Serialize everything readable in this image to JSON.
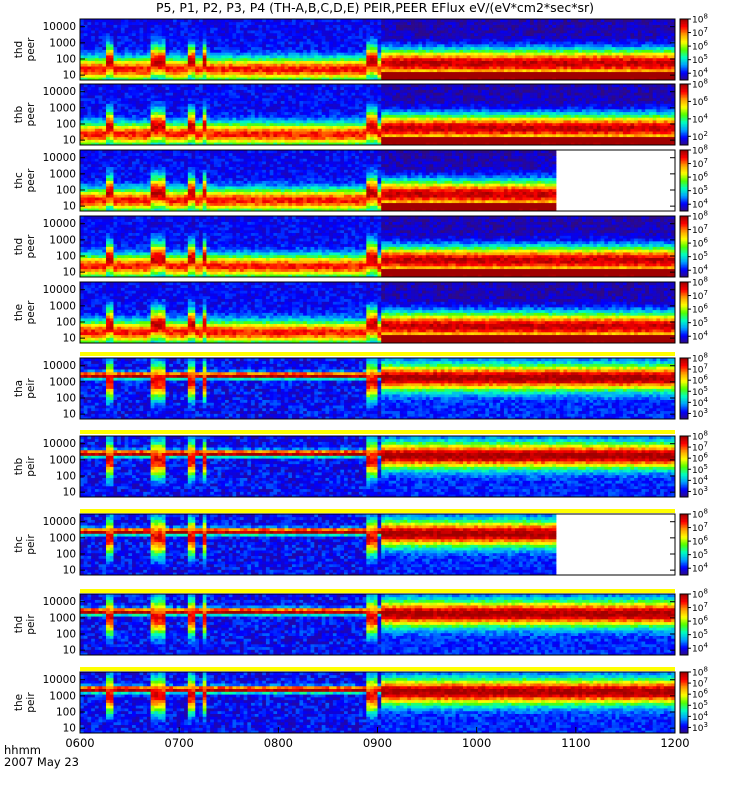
{
  "chart_data": {
    "type": "heatmap",
    "title": "P5, P1, P2, P3, P4 (TH-A,B,C,D,E) PEIR,PEER EFlux eV/(eV*cm2*sec*sr)",
    "time_axis": {
      "label": "hhmm",
      "date": "2007 May 23",
      "range": [
        "0600",
        "1200"
      ],
      "ticks": [
        "0600",
        "0700",
        "0800",
        "0900",
        "1000",
        "1100",
        "1200"
      ]
    },
    "energy_axis": {
      "unit": "eV",
      "scale": "log",
      "range": [
        5,
        30000
      ],
      "ticks": [
        "10",
        "100",
        "1000",
        "10000"
      ]
    },
    "panels": [
      {
        "label": "thd peer",
        "zmin_exp": 3.5,
        "zmax_exp": 8,
        "cbar_ticks": [
          "10^4",
          "10^5",
          "10^6",
          "10^7",
          "10^8"
        ],
        "data_end": "1200",
        "species": "electron"
      },
      {
        "label": "thb peer",
        "zmin_exp": 1,
        "zmax_exp": 8,
        "cbar_ticks": [
          "10^2",
          "10^4",
          "10^6",
          "10^8"
        ],
        "data_end": "1200",
        "species": "electron"
      },
      {
        "label": "thc peer",
        "zmin_exp": 3.5,
        "zmax_exp": 8,
        "cbar_ticks": [
          "10^4",
          "10^5",
          "10^6",
          "10^7",
          "10^8"
        ],
        "data_end": "1047",
        "species": "electron"
      },
      {
        "label": "thd peer",
        "zmin_exp": 3.5,
        "zmax_exp": 8,
        "cbar_ticks": [
          "10^4",
          "10^5",
          "10^6",
          "10^7",
          "10^8"
        ],
        "data_end": "1200",
        "species": "electron"
      },
      {
        "label": "the peer",
        "zmin_exp": 3.5,
        "zmax_exp": 8,
        "cbar_ticks": [
          "10^4",
          "10^5",
          "10^6",
          "10^7",
          "10^8"
        ],
        "data_end": "1200",
        "species": "electron"
      },
      {
        "label": "tha peir",
        "zmin_exp": 2.5,
        "zmax_exp": 8,
        "cbar_ticks": [
          "10^3",
          "10^4",
          "10^5",
          "10^6",
          "10^7",
          "10^8"
        ],
        "data_end": "1200",
        "species": "ion"
      },
      {
        "label": "thb peir",
        "zmin_exp": 2.5,
        "zmax_exp": 8,
        "cbar_ticks": [
          "10^3",
          "10^4",
          "10^5",
          "10^6",
          "10^7",
          "10^8"
        ],
        "data_end": "1200",
        "species": "ion"
      },
      {
        "label": "thc peir",
        "zmin_exp": 3.5,
        "zmax_exp": 8,
        "cbar_ticks": [
          "10^4",
          "10^5",
          "10^6",
          "10^7",
          "10^8"
        ],
        "data_end": "1047",
        "species": "ion"
      },
      {
        "label": "thd peir",
        "zmin_exp": 3.5,
        "zmax_exp": 8,
        "cbar_ticks": [
          "10^4",
          "10^5",
          "10^6",
          "10^7",
          "10^8"
        ],
        "data_end": "1200",
        "species": "ion"
      },
      {
        "label": "the peir",
        "zmin_exp": 2.5,
        "zmax_exp": 8,
        "cbar_ticks": [
          "10^3",
          "10^4",
          "10^5",
          "10^6",
          "10^7",
          "10^8"
        ],
        "data_end": "1200",
        "species": "ion"
      }
    ],
    "events": {
      "boundary_crossing": "0903",
      "dips": [
        "0615-0621",
        "0643-0651",
        "0706-0710",
        "0714-0716",
        "0853-0859"
      ]
    },
    "colorscale": [
      "#300a80",
      "#0000ff",
      "#00a0ff",
      "#00ffc0",
      "#50ff00",
      "#ffff00",
      "#ffa000",
      "#ff0000",
      "#a00000"
    ]
  }
}
